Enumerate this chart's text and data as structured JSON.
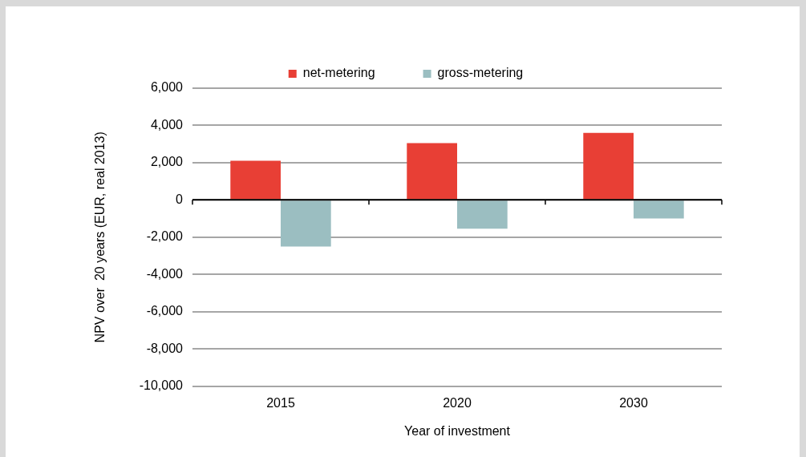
{
  "chart_data": {
    "type": "bar",
    "xlabel": "Year of investment",
    "ylabel": "NPV over  20 years (EUR, real 2013)",
    "categories": [
      "2015",
      "2020",
      "2030"
    ],
    "series": [
      {
        "name": "net-metering",
        "color": "#e83f35",
        "values": [
          2100,
          3050,
          3600
        ]
      },
      {
        "name": "gross-metering",
        "color": "#9bbec1",
        "values": [
          -2500,
          -1550,
          -1000
        ]
      }
    ],
    "ylim": [
      -10000,
      6000
    ],
    "yticks": [
      {
        "value": -10000,
        "label": "-10,000"
      },
      {
        "value": -8000,
        "label": "-8,000"
      },
      {
        "value": -6000,
        "label": "-6,000"
      },
      {
        "value": -4000,
        "label": "-4,000"
      },
      {
        "value": -2000,
        "label": "-2,000"
      },
      0,
      {
        "value": 2000,
        "label": "2,000"
      },
      {
        "value": 4000,
        "label": "4,000"
      },
      {
        "value": 6000,
        "label": "6,000"
      }
    ],
    "grid": "y",
    "legend": "top"
  }
}
